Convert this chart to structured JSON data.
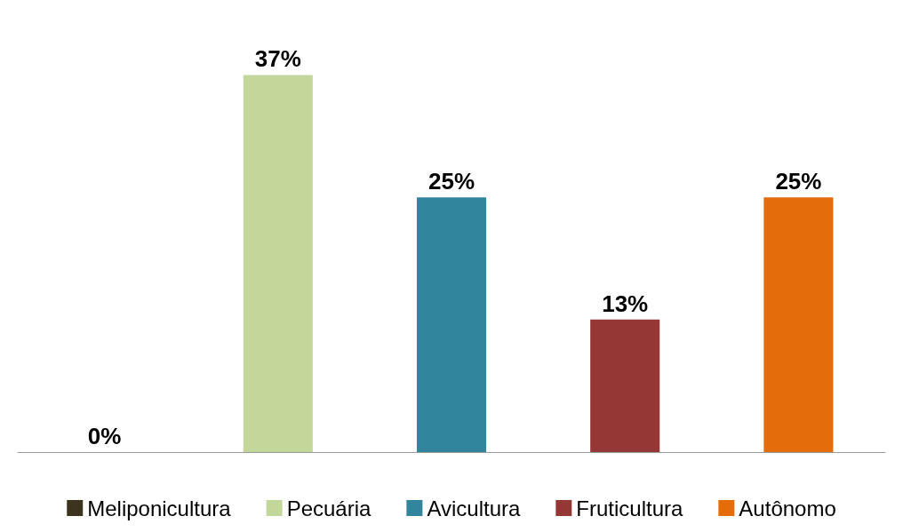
{
  "chart_data": {
    "type": "bar",
    "categories": [
      null,
      null,
      null,
      null,
      null
    ],
    "stacked": true,
    "legend": "bottom",
    "series": [
      {
        "name": "Meliponicultura",
        "color": "#3d3420",
        "values": [
          0,
          null,
          null,
          null,
          null
        ],
        "value_labels": [
          "0%",
          null,
          null,
          null,
          null
        ]
      },
      {
        "name": "Pecuária",
        "color": "#c4d79b",
        "values": [
          null,
          37,
          null,
          null,
          null
        ],
        "value_labels": [
          null,
          "37%",
          null,
          null,
          null
        ]
      },
      {
        "name": "Avicultura",
        "color": "#31859c",
        "values": [
          null,
          null,
          25,
          null,
          null
        ],
        "value_labels": [
          null,
          null,
          "25%",
          null,
          null
        ]
      },
      {
        "name": "Fruticultura",
        "color": "#953735",
        "values": [
          null,
          null,
          null,
          13,
          null
        ],
        "value_labels": [
          null,
          null,
          null,
          "13%",
          null
        ]
      },
      {
        "name": "Autônomo",
        "color": "#e46c0a",
        "values": [
          null,
          null,
          null,
          null,
          25
        ],
        "value_labels": [
          null,
          null,
          null,
          null,
          "25%"
        ]
      }
    ]
  }
}
